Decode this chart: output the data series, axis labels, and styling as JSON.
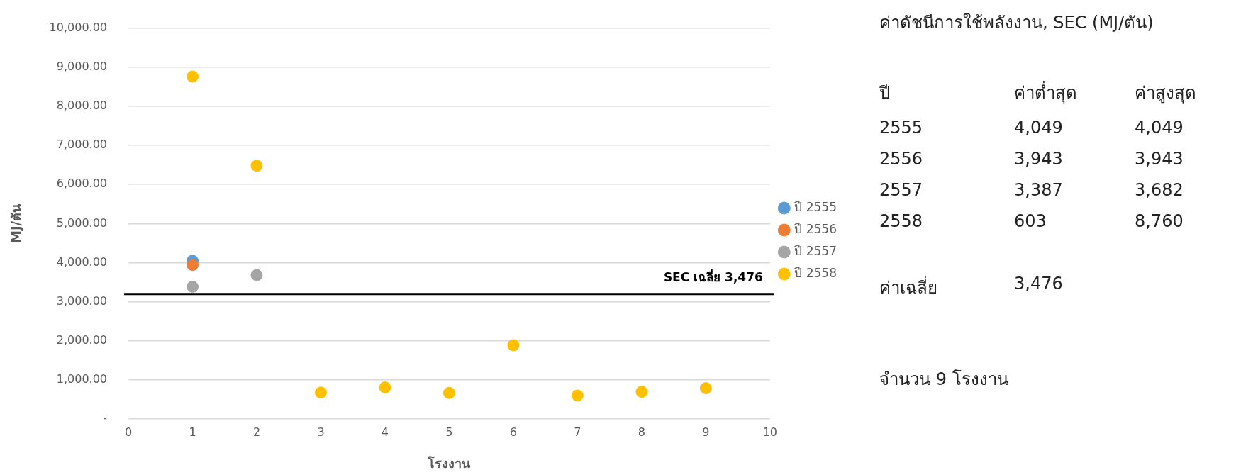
{
  "chart_data": {
    "type": "scatter",
    "xlabel": "โรงงาน",
    "ylabel": "MJ/ตัน",
    "xlim": [
      0,
      10
    ],
    "xticks": [
      0,
      1,
      2,
      3,
      4,
      5,
      6,
      7,
      8,
      9,
      10
    ],
    "ylim": [
      0,
      10000
    ],
    "yticks": [
      {
        "value": 0,
        "label": "-"
      },
      {
        "value": 1000,
        "label": "1,000.00"
      },
      {
        "value": 2000,
        "label": "2,000.00"
      },
      {
        "value": 3000,
        "label": "3,000.00"
      },
      {
        "value": 4000,
        "label": "4,000.00"
      },
      {
        "value": 5000,
        "label": "5,000.00"
      },
      {
        "value": 6000,
        "label": "6,000.00"
      },
      {
        "value": 7000,
        "label": "7,000.00"
      },
      {
        "value": 8000,
        "label": "8,000.00"
      },
      {
        "value": 9000,
        "label": "9,000.00"
      },
      {
        "value": 10000,
        "label": "10,000.00"
      }
    ],
    "grid": "y",
    "legend": "right",
    "marker": "circle",
    "series": [
      {
        "name": "ปี 2555",
        "color": "#5b9bd5",
        "x": [
          1
        ],
        "values": [
          4049
        ]
      },
      {
        "name": "ปี 2556",
        "color": "#ed7d31",
        "x": [
          1
        ],
        "values": [
          3943
        ]
      },
      {
        "name": "ปี 2557",
        "color": "#a5a5a5",
        "x": [
          1,
          2
        ],
        "values": [
          3387,
          3682
        ]
      },
      {
        "name": "ปี 2558",
        "color": "#ffc000",
        "x": [
          1,
          2,
          3,
          4,
          5,
          6,
          7,
          8,
          9
        ],
        "values": [
          8760,
          6480,
          680,
          810,
          670,
          1890,
          603,
          700,
          790
        ]
      }
    ],
    "ref_lines": [
      {
        "axis": "y",
        "value": 3200,
        "label": "SEC เฉลี่ย 3,476",
        "color": "#000000"
      }
    ],
    "annotations": [
      "ค่าดัชนีการใช้พลังงาน, SEC (MJ/ตัน)",
      "ปี",
      "ค่าต่ำสุด",
      "ค่าสูงสุด",
      "2555",
      "4,049",
      "4,049",
      "2556",
      "3,943",
      "3,943",
      "2557",
      "3,387",
      "3,682",
      "2558",
      "603",
      "8,760",
      "ค่าเฉลี่ย",
      "3,476",
      "จำนวน 9 โรงงาน"
    ]
  }
}
